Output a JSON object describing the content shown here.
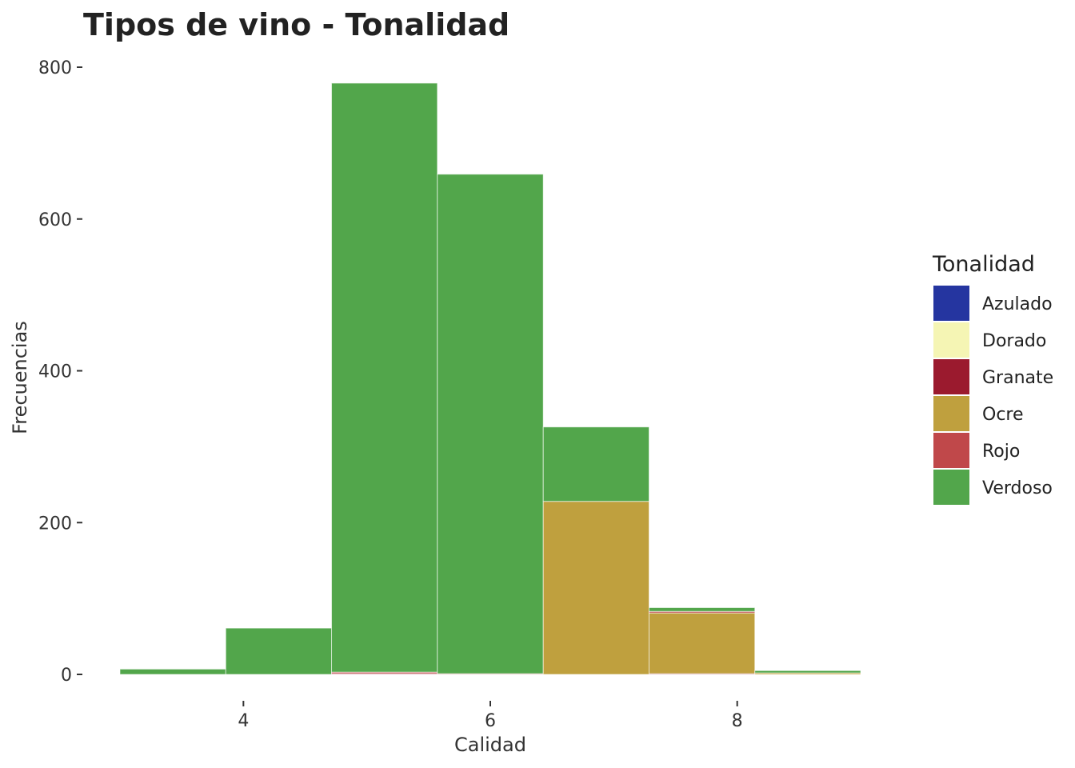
{
  "chart_data": {
    "type": "bar",
    "stacked": true,
    "title": "Tipos de vino - Tonalidad",
    "xlabel": "Calidad",
    "ylabel": "Frecuencias",
    "xlim": [
      3,
      9
    ],
    "ylim": [
      0,
      800
    ],
    "x_ticks": [
      4,
      6,
      8
    ],
    "y_ticks": [
      0,
      200,
      400,
      600,
      800
    ],
    "grid": false,
    "legend_position": "right",
    "legend_title": "Tonalidad",
    "bins": [
      {
        "start": 3.0,
        "end": 3.857
      },
      {
        "start": 3.857,
        "end": 4.714
      },
      {
        "start": 4.714,
        "end": 5.571
      },
      {
        "start": 5.571,
        "end": 6.429
      },
      {
        "start": 6.429,
        "end": 7.286
      },
      {
        "start": 7.286,
        "end": 8.143
      },
      {
        "start": 8.143,
        "end": 9.0
      }
    ],
    "series": [
      {
        "name": "Azulado",
        "color": "#2535a0",
        "values": [
          0,
          0,
          0,
          0,
          0,
          0,
          0
        ]
      },
      {
        "name": "Dorado",
        "color": "#f5f5b4",
        "values": [
          0,
          0,
          0,
          0,
          0,
          0,
          0
        ]
      },
      {
        "name": "Granate",
        "color": "#9b1a2e",
        "values": [
          0,
          0,
          1,
          0,
          0,
          1,
          0
        ]
      },
      {
        "name": "Ocre",
        "color": "#bfa03e",
        "values": [
          0,
          0,
          0,
          0,
          228,
          80,
          2
        ]
      },
      {
        "name": "Rojo",
        "color": "#c0484a",
        "values": [
          0,
          0,
          2,
          1,
          0,
          2,
          0
        ]
      },
      {
        "name": "Verdoso",
        "color": "#52a64b",
        "values": [
          7,
          61,
          776,
          658,
          98,
          5,
          3
        ]
      }
    ]
  }
}
